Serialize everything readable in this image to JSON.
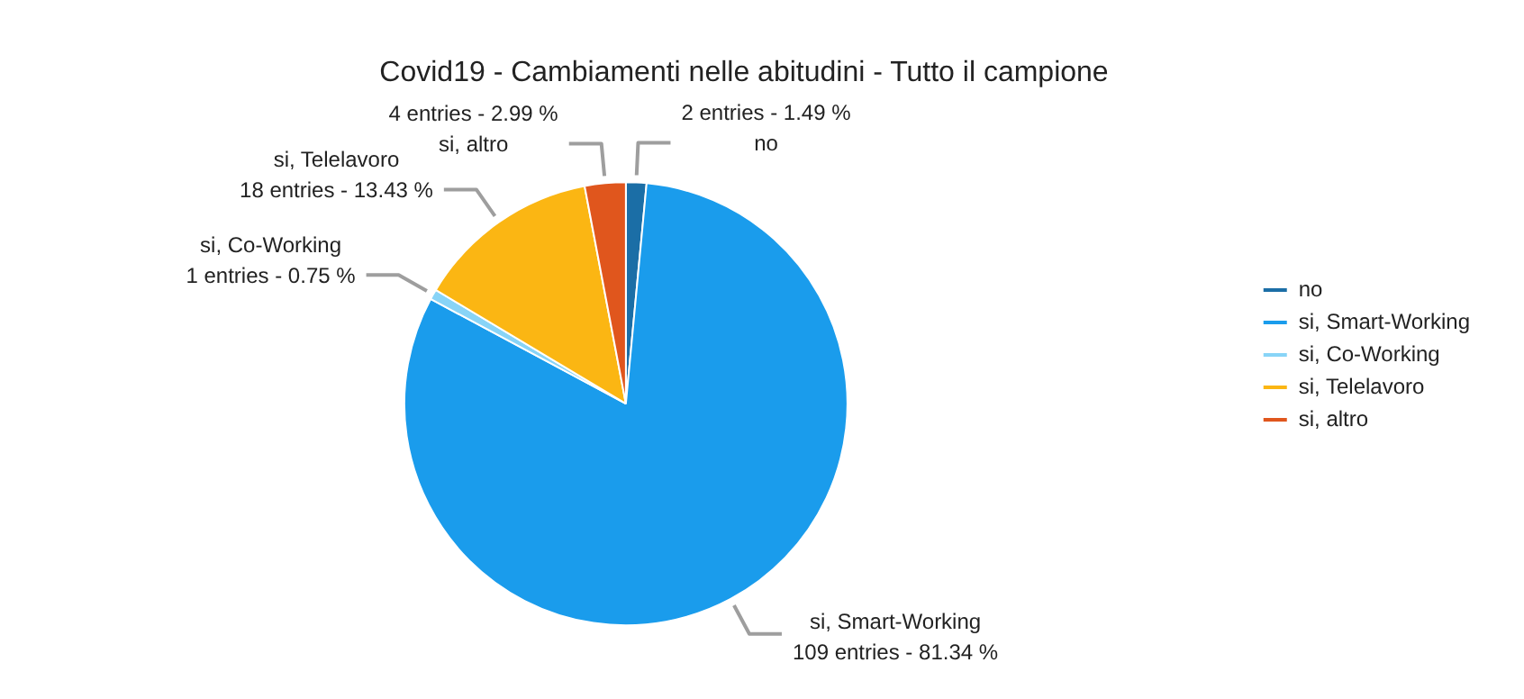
{
  "chart_data": {
    "type": "pie",
    "title": "Covid19 - Cambiamenti nelle abitudini - Tutto il campione",
    "categories": [
      "no",
      "si, Smart-Working",
      "si, Co-Working",
      "si, Telelavoro",
      "si, altro"
    ],
    "values": [
      2,
      109,
      1,
      18,
      4
    ],
    "colors": [
      "#1b6ea6",
      "#1a9cec",
      "#88d4f7",
      "#fbb613",
      "#e0561d"
    ],
    "value_labels": [
      "2 entries - 1.49 %",
      "109 entries - 81.34 %",
      "1 entries - 0.75 %",
      "18 entries - 13.43 %",
      "4 entries - 2.99 %"
    ],
    "legend": "right"
  }
}
